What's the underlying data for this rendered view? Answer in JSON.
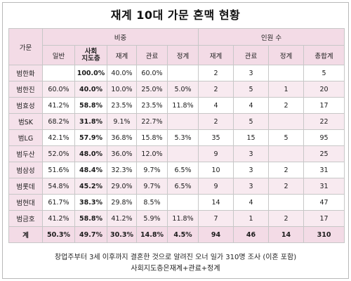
{
  "title": "재계 10대 가문 혼맥 현황",
  "headers": {
    "family": "가문",
    "ratio_group": "비중",
    "count_group": "인원 수",
    "ratio_cols": [
      "일반",
      "사회\n지도층",
      "재계",
      "관료",
      "정계"
    ],
    "count_cols": [
      "재계",
      "관료",
      "정계",
      "총합계"
    ]
  },
  "rows": [
    {
      "family": "범한화",
      "general": "",
      "leaders": "100.0%",
      "business": "40.0%",
      "official": "60.0%",
      "politics": "",
      "n_business": "2",
      "n_official": "3",
      "n_politics": "",
      "n_total": "5"
    },
    {
      "family": "범한진",
      "general": "60.0%",
      "leaders": "40.0%",
      "business": "10.0%",
      "official": "25.0%",
      "politics": "5.0%",
      "n_business": "2",
      "n_official": "5",
      "n_politics": "1",
      "n_total": "20"
    },
    {
      "family": "범효성",
      "general": "41.2%",
      "leaders": "58.8%",
      "business": "23.5%",
      "official": "23.5%",
      "politics": "11.8%",
      "n_business": "4",
      "n_official": "4",
      "n_politics": "2",
      "n_total": "17"
    },
    {
      "family": "범SK",
      "general": "68.2%",
      "leaders": "31.8%",
      "business": "9.1%",
      "official": "22.7%",
      "politics": "",
      "n_business": "2",
      "n_official": "5",
      "n_politics": "",
      "n_total": "22"
    },
    {
      "family": "범LG",
      "general": "42.1%",
      "leaders": "57.9%",
      "business": "36.8%",
      "official": "15.8%",
      "politics": "5.3%",
      "n_business": "35",
      "n_official": "15",
      "n_politics": "5",
      "n_total": "95"
    },
    {
      "family": "범두산",
      "general": "52.0%",
      "leaders": "48.0%",
      "business": "36.0%",
      "official": "12.0%",
      "politics": "",
      "n_business": "9",
      "n_official": "3",
      "n_politics": "",
      "n_total": "25"
    },
    {
      "family": "범삼성",
      "general": "51.6%",
      "leaders": "48.4%",
      "business": "32.3%",
      "official": "9.7%",
      "politics": "6.5%",
      "n_business": "10",
      "n_official": "3",
      "n_politics": "2",
      "n_total": "31"
    },
    {
      "family": "범롯데",
      "general": "54.8%",
      "leaders": "45.2%",
      "business": "29.0%",
      "official": "9.7%",
      "politics": "6.5%",
      "n_business": "9",
      "n_official": "3",
      "n_politics": "2",
      "n_total": "31"
    },
    {
      "family": "범현대",
      "general": "61.7%",
      "leaders": "38.3%",
      "business": "29.8%",
      "official": "8.5%",
      "politics": "",
      "n_business": "14",
      "n_official": "4",
      "n_politics": "",
      "n_total": "47"
    },
    {
      "family": "범금호",
      "general": "41.2%",
      "leaders": "58.8%",
      "business": "41.2%",
      "official": "5.9%",
      "politics": "11.8%",
      "n_business": "7",
      "n_official": "1",
      "n_politics": "2",
      "n_total": "17"
    }
  ],
  "total": {
    "family": "계",
    "general": "50.3%",
    "leaders": "49.7%",
    "business": "30.3%",
    "official": "14.8%",
    "politics": "4.5%",
    "n_business": "94",
    "n_official": "46",
    "n_politics": "14",
    "n_total": "310"
  },
  "footnotes": [
    "창업주부터 3세 이후까지 결혼한 것으로 알려진 오너 일가 310명 조사 (이혼 포함)",
    "사회지도층은재계+관료+정계"
  ]
}
